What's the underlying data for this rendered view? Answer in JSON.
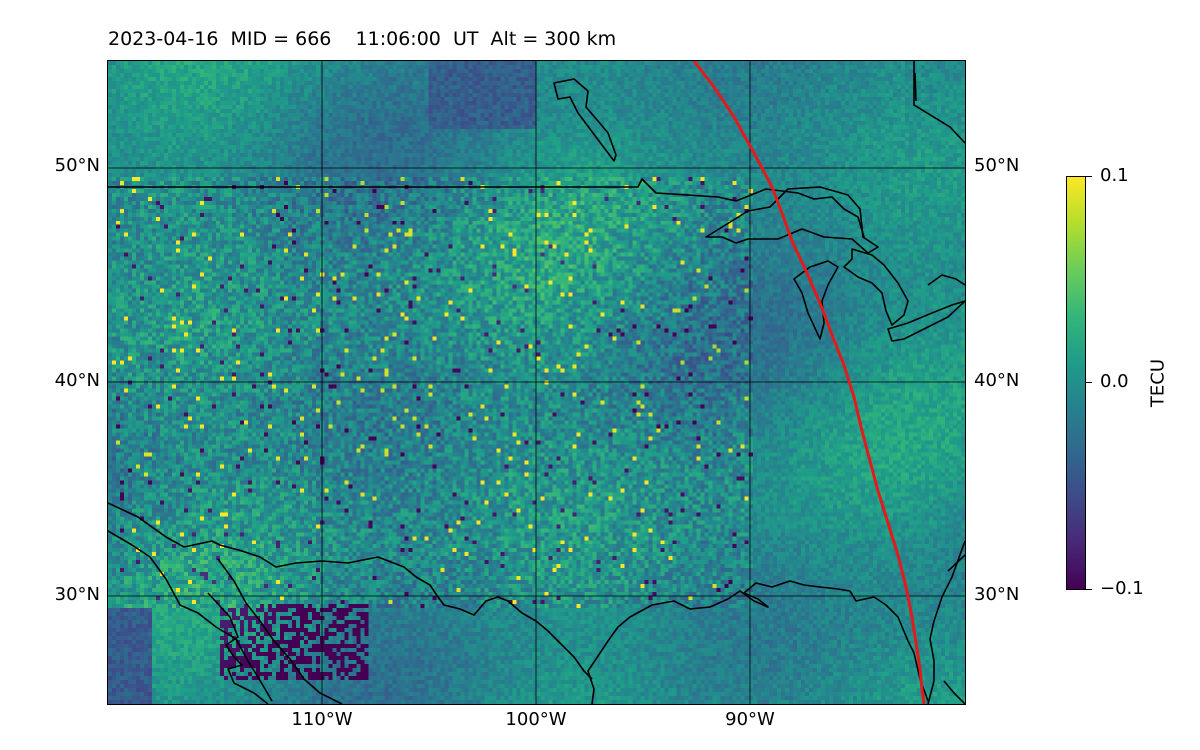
{
  "title": "2023-04-16  MID = 666    11:06:00  UT  Alt = 300 km",
  "map": {
    "lon_range": [
      -119.5,
      -79.5
    ],
    "lat_range": [
      25,
      55
    ],
    "lat_ticks": [
      {
        "value": 50,
        "label": "50°N"
      },
      {
        "value": 40,
        "label": "40°N"
      },
      {
        "value": 30,
        "label": "30°N"
      }
    ],
    "lon_ticks": [
      {
        "value": -110,
        "label": "110°W"
      },
      {
        "value": -100,
        "label": "100°W"
      },
      {
        "value": -90,
        "label": "90°W"
      }
    ],
    "gridlines": true,
    "terminator_color": "#e31a1c",
    "coastline_color": "#000000"
  },
  "colorbar": {
    "label": "TECU",
    "min": -0.1,
    "max": 0.1,
    "ticks": [
      {
        "value": 0.1,
        "label": "0.1"
      },
      {
        "value": 0.0,
        "label": "0.0"
      },
      {
        "value": -0.1,
        "label": "−0.1"
      }
    ],
    "colormap": "viridis"
  }
}
